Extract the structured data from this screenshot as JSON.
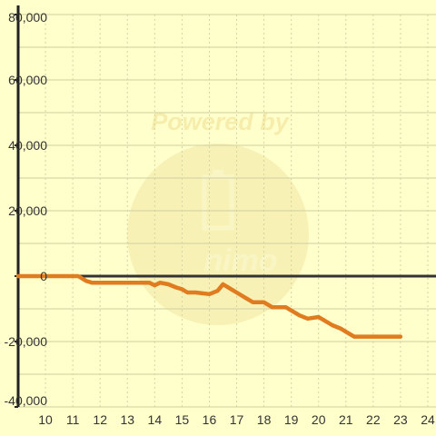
{
  "chart_data": {
    "type": "line",
    "title": "",
    "xlabel": "",
    "ylabel": "",
    "xlim": [
      9,
      24.3
    ],
    "ylim": [
      -40000,
      80000
    ],
    "x_ticks": [
      10,
      11,
      12,
      13,
      14,
      15,
      16,
      17,
      18,
      19,
      20,
      21,
      22,
      23,
      24
    ],
    "x_tick_labels": [
      "10",
      "11",
      "12",
      "13",
      "14",
      "15",
      "16",
      "17",
      "18",
      "19",
      "20",
      "21",
      "22",
      "23",
      "24"
    ],
    "y_ticks": [
      80000,
      60000,
      40000,
      20000,
      0,
      -20000,
      -40000
    ],
    "y_tick_labels": [
      "80,000",
      "60,000",
      "40,000",
      "20,000",
      "0",
      "-20,000",
      "-40,000"
    ],
    "grid": true,
    "legend": "none",
    "colors": {
      "background": "#ffffcc",
      "line": "#e07b1f",
      "zero_line": "#333333",
      "y_axis": "#222222",
      "grid_h": "#cfcfa0",
      "grid_v": "#d4d4a4",
      "watermark": "#f5e6a0"
    },
    "series": [
      {
        "x": [
          9,
          11.2,
          11.5,
          11.7,
          12,
          13,
          13.8,
          14,
          14.2,
          14.5,
          14.8,
          15,
          15.2,
          15.5,
          16,
          16.3,
          16.5,
          16.7,
          17,
          17.3,
          17.6,
          18,
          18.3,
          18.8,
          19,
          19.3,
          19.6,
          20,
          20.2,
          20.5,
          20.8,
          21,
          21.3,
          21.6,
          22,
          23
        ],
        "y": [
          0,
          0,
          -1500,
          -2000,
          -2000,
          -2000,
          -2000,
          -2800,
          -2000,
          -2500,
          -3500,
          -4000,
          -5000,
          -5000,
          -5500,
          -4500,
          -2500,
          -3500,
          -5000,
          -6500,
          -8000,
          -8000,
          -9500,
          -9500,
          -10500,
          -12000,
          -13000,
          -12500,
          -13500,
          -15000,
          -16000,
          -17000,
          -18500,
          -18500,
          -18500,
          -18500
        ]
      }
    ]
  },
  "watermark": {
    "text_top": "Powered by",
    "logo_icon": "battery-icon",
    "text_bottom": "nimo"
  }
}
